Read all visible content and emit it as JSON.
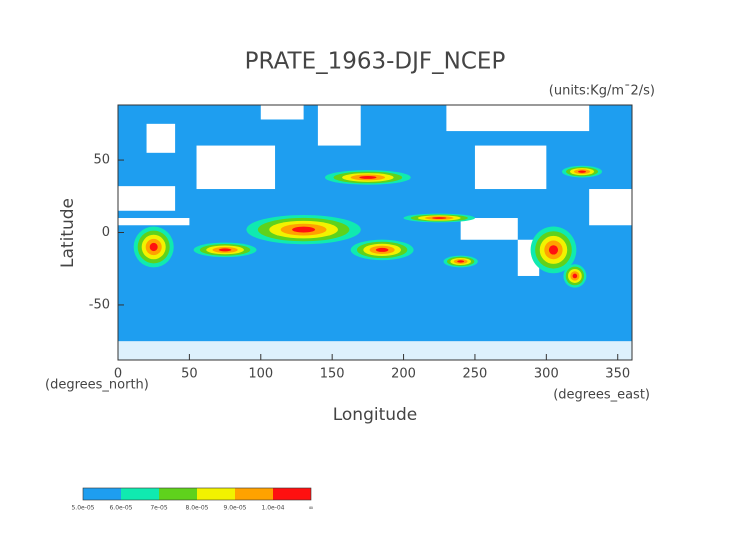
{
  "chart_data": {
    "type": "map",
    "title": "PRATE_1963-DJF_NCEP",
    "subtitle": "(units:Kg/m¯2/s)",
    "x_label": "Longitude",
    "y_label": "Latitude",
    "x_units": "(degrees_east)",
    "y_units": "(degrees_north)",
    "xlim": [
      0,
      360
    ],
    "ylim": [
      -88,
      88
    ],
    "xticks": [
      0,
      50,
      100,
      150,
      200,
      250,
      300,
      350
    ],
    "yticks": [
      -50,
      0,
      50
    ],
    "background_color": "#1e9ef0",
    "colorbar": {
      "labels": [
        "5.0e-05",
        "6.0e-05",
        "7e-05",
        "8.0e-05",
        "9.0e-05",
        "1.0e-04",
        "∞"
      ],
      "colors": [
        "#1e9ef0",
        "#10eab0",
        "#5fd21c",
        "#f2f200",
        "#ffa200",
        "#ff1010"
      ]
    }
  }
}
